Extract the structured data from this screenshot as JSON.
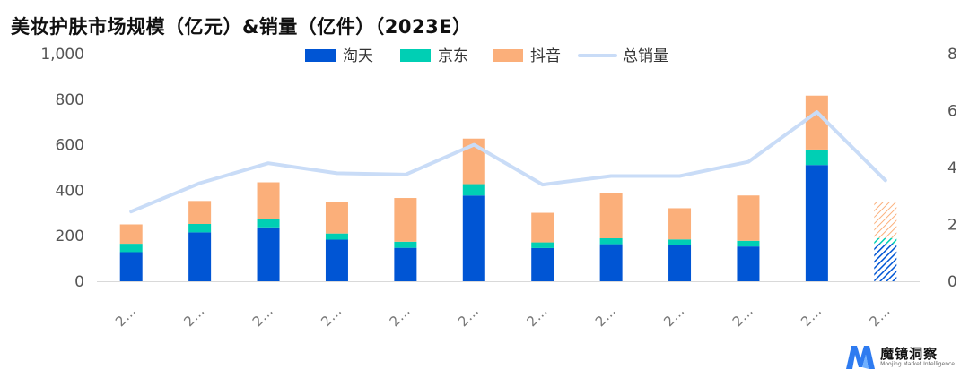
{
  "title": "美妆护肤市场规模（亿元）&销量（亿件）（2023E）",
  "brand": {
    "name": "魔镜洞察",
    "tagline": "Moojing Market Intelligence"
  },
  "colors": {
    "taobao": "#0055D4",
    "jd": "#00CFB4",
    "douyin": "#FBAF7A",
    "total": "#C9DCF7",
    "axis": "#D9D9D9"
  },
  "chart_data": {
    "type": "bar",
    "stacked": true,
    "categories": [
      "2…",
      "2…",
      "2…",
      "2…",
      "2…",
      "2…",
      "2…",
      "2…",
      "2…",
      "2…",
      "2…",
      "2…"
    ],
    "series": [
      {
        "name": "淘天",
        "axis": "left",
        "kind": "bar",
        "values": [
          128,
          215,
          237,
          183,
          147,
          377,
          146,
          163,
          159,
          153,
          511,
          165
        ]
      },
      {
        "name": "京东",
        "axis": "left",
        "kind": "bar",
        "values": [
          37,
          37,
          37,
          27,
          27,
          50,
          25,
          26,
          25,
          25,
          68,
          25
        ]
      },
      {
        "name": "抖音",
        "axis": "left",
        "kind": "bar",
        "values": [
          85,
          101,
          161,
          139,
          192,
          200,
          130,
          197,
          137,
          199,
          237,
          157
        ]
      },
      {
        "name": "总销量",
        "axis": "right",
        "kind": "line",
        "values": [
          2.45,
          3.45,
          4.15,
          3.8,
          3.75,
          4.8,
          3.4,
          3.7,
          3.7,
          4.2,
          5.95,
          3.55
        ]
      }
    ],
    "estimated_index": 11,
    "ylim_left": [
      0,
      1000
    ],
    "yticks_left": [
      "0",
      "200",
      "400",
      "600",
      "800",
      "1,000"
    ],
    "ylim_right": [
      0,
      8
    ],
    "yticks_right": [
      "0",
      "2",
      "4",
      "6",
      "8"
    ],
    "legend_position": "top-center",
    "grid": false
  }
}
